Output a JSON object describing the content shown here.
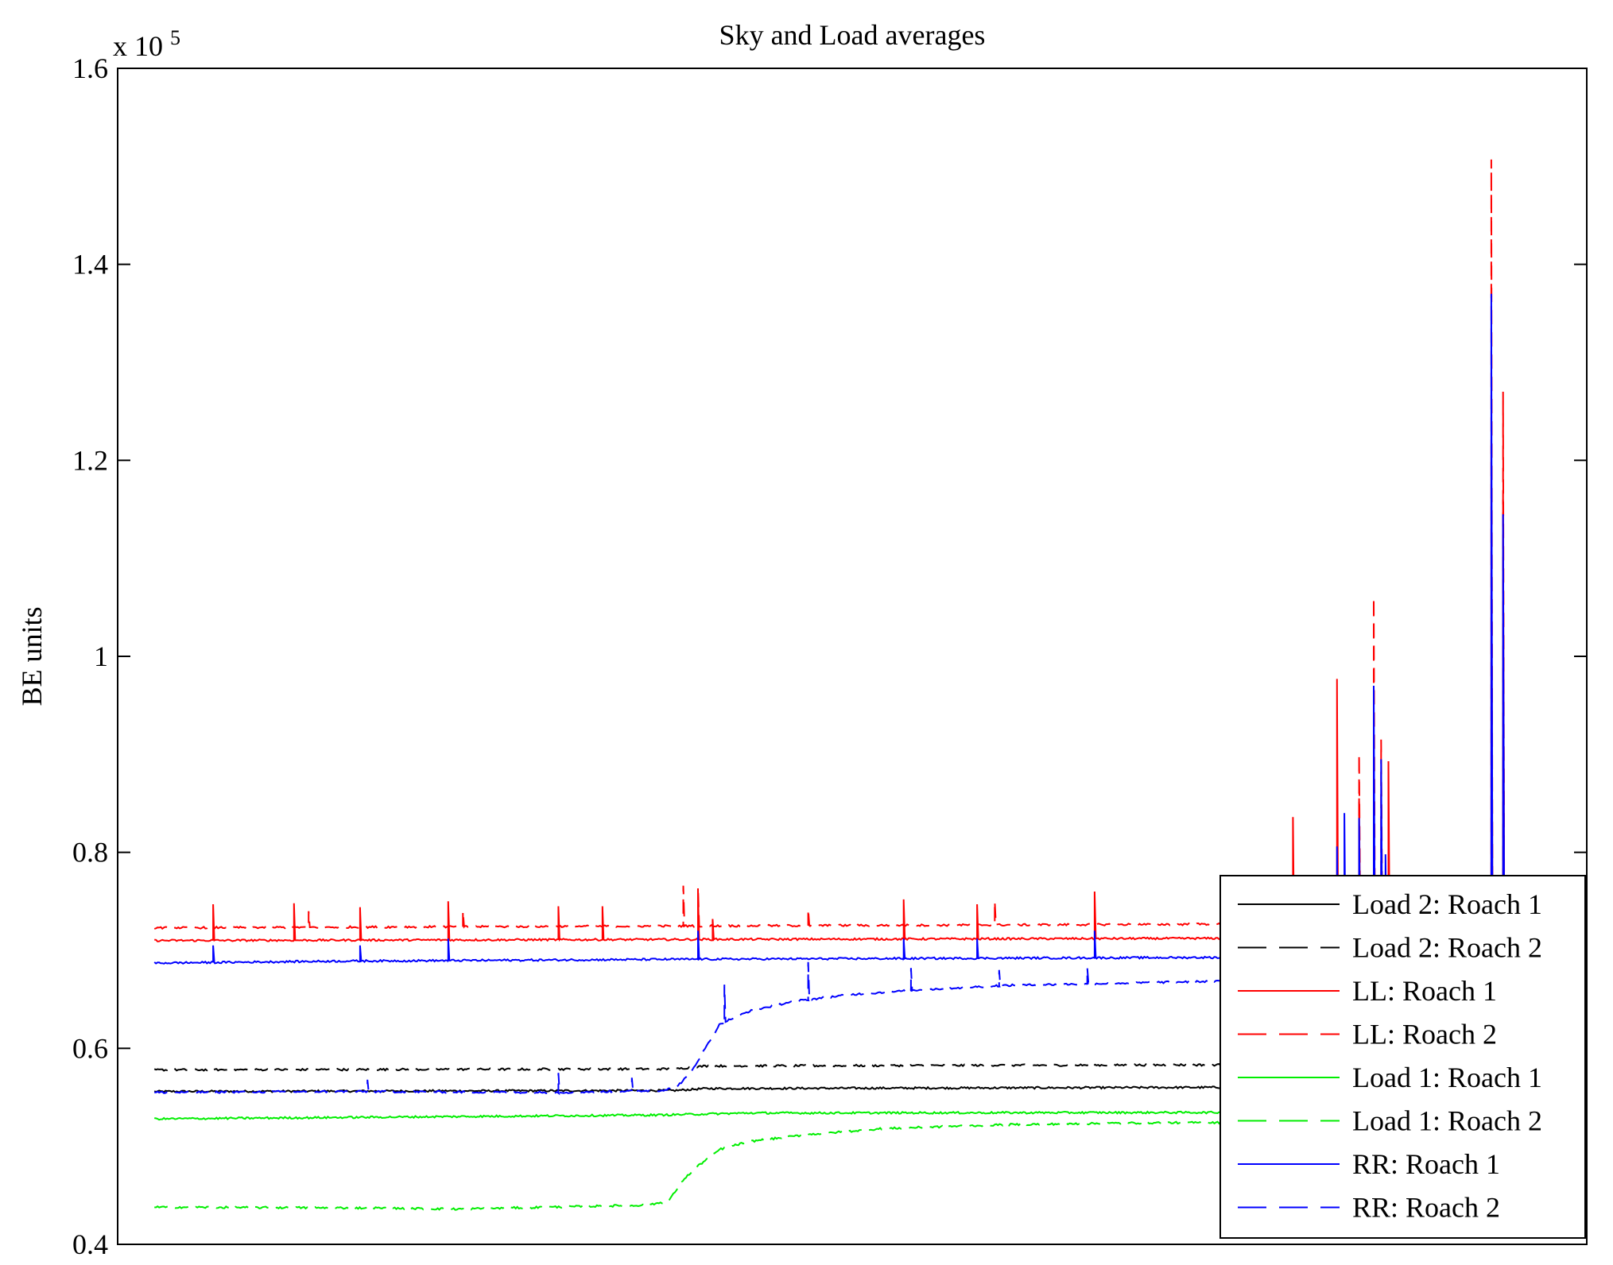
{
  "chart_data": {
    "type": "line",
    "title": "Sky and Load averages",
    "xlabel": "",
    "ylabel": "BE units",
    "y_scale_label": {
      "base": "x 10",
      "exponent": "5"
    },
    "ylim": [
      0.4,
      1.6
    ],
    "xlim": [
      0,
      1000
    ],
    "yticks": [
      0.4,
      0.6,
      0.8,
      1.0,
      1.2,
      1.4,
      1.6
    ],
    "ytick_labels": [
      "0.4",
      "0.6",
      "0.8",
      "1",
      "1.2",
      "1.4",
      "1.6"
    ],
    "x_data_range": [
      25,
      1000
    ],
    "legend_position": "bottom-right",
    "series": [
      {
        "name": "Load 2: Roach 1",
        "color": "#000000",
        "dash": "solid",
        "baseline": [
          [
            25,
            0.556
          ],
          [
            380,
            0.557
          ],
          [
            400,
            0.559
          ],
          [
            1000,
            0.561
          ]
        ],
        "spikes": []
      },
      {
        "name": "Load 2: Roach 2",
        "color": "#000000",
        "dash": "dashed",
        "baseline": [
          [
            25,
            0.578
          ],
          [
            380,
            0.579
          ],
          [
            400,
            0.582
          ],
          [
            1000,
            0.584
          ]
        ],
        "spikes": []
      },
      {
        "name": "LL: Roach 1",
        "color": "#ff0000",
        "dash": "solid",
        "baseline": [
          [
            25,
            0.71
          ],
          [
            1000,
            0.713
          ]
        ],
        "spikes": [
          [
            65,
            0.747
          ],
          [
            120,
            0.748
          ],
          [
            165,
            0.744
          ],
          [
            225,
            0.75
          ],
          [
            300,
            0.745
          ],
          [
            330,
            0.745
          ],
          [
            395,
            0.758
          ],
          [
            405,
            0.732
          ],
          [
            535,
            0.752
          ],
          [
            585,
            0.747
          ],
          [
            665,
            0.76
          ],
          [
            752,
            0.745
          ],
          [
            763,
            0.75
          ],
          [
            800,
            0.836
          ],
          [
            830,
            0.977
          ],
          [
            845,
            0.855
          ],
          [
            865,
            0.893
          ],
          [
            935,
            1.215
          ],
          [
            943,
            1.16
          ]
        ]
      },
      {
        "name": "LL: Roach 2",
        "color": "#ff0000",
        "dash": "dashed",
        "baseline": [
          [
            25,
            0.723
          ],
          [
            1000,
            0.728
          ]
        ],
        "spikes": [
          [
            130,
            0.74
          ],
          [
            235,
            0.74
          ],
          [
            385,
            0.766
          ],
          [
            395,
            0.765
          ],
          [
            470,
            0.742
          ],
          [
            597,
            0.75
          ],
          [
            845,
            0.9
          ],
          [
            855,
            1.06
          ],
          [
            860,
            0.915
          ],
          [
            935,
            1.507
          ],
          [
            943,
            1.27
          ]
        ]
      },
      {
        "name": "Load 1: Roach 1",
        "color": "#00ee00",
        "dash": "solid",
        "baseline": [
          [
            25,
            0.528
          ],
          [
            370,
            0.532
          ],
          [
            430,
            0.534
          ],
          [
            1000,
            0.535
          ]
        ],
        "spikes": []
      },
      {
        "name": "Load 1: Roach 2",
        "color": "#00ee00",
        "dash": "dashed",
        "baseline": [
          [
            25,
            0.438
          ],
          [
            180,
            0.437
          ],
          [
            230,
            0.436
          ],
          [
            360,
            0.44
          ],
          [
            375,
            0.444
          ],
          [
            385,
            0.466
          ],
          [
            395,
            0.48
          ],
          [
            410,
            0.497
          ],
          [
            430,
            0.505
          ],
          [
            470,
            0.512
          ],
          [
            520,
            0.518
          ],
          [
            600,
            0.522
          ],
          [
            700,
            0.524
          ],
          [
            1000,
            0.526
          ]
        ],
        "spikes": []
      },
      {
        "name": "RR: Roach 1",
        "color": "#0000ff",
        "dash": "solid",
        "baseline": [
          [
            25,
            0.687
          ],
          [
            150,
            0.689
          ],
          [
            400,
            0.691
          ],
          [
            600,
            0.692
          ],
          [
            1000,
            0.694
          ]
        ],
        "spikes": [
          [
            65,
            0.705
          ],
          [
            165,
            0.705
          ],
          [
            225,
            0.712
          ],
          [
            395,
            0.72
          ],
          [
            535,
            0.712
          ],
          [
            585,
            0.712
          ],
          [
            665,
            0.72
          ],
          [
            752,
            0.72
          ],
          [
            800,
            0.71
          ],
          [
            830,
            0.806
          ],
          [
            835,
            0.84
          ],
          [
            845,
            0.835
          ],
          [
            855,
            0.97
          ],
          [
            860,
            0.895
          ],
          [
            863,
            0.798
          ],
          [
            935,
            1.37
          ],
          [
            943,
            1.145
          ]
        ]
      },
      {
        "name": "RR: Roach 2",
        "color": "#0000ff",
        "dash": "dashed",
        "baseline": [
          [
            25,
            0.555
          ],
          [
            150,
            0.556
          ],
          [
            300,
            0.555
          ],
          [
            370,
            0.557
          ],
          [
            380,
            0.56
          ],
          [
            390,
            0.575
          ],
          [
            400,
            0.6
          ],
          [
            410,
            0.625
          ],
          [
            430,
            0.638
          ],
          [
            460,
            0.648
          ],
          [
            500,
            0.655
          ],
          [
            550,
            0.66
          ],
          [
            600,
            0.664
          ],
          [
            700,
            0.667
          ],
          [
            800,
            0.67
          ],
          [
            1000,
            0.673
          ]
        ],
        "spikes": [
          [
            170,
            0.568
          ],
          [
            300,
            0.575
          ],
          [
            350,
            0.57
          ],
          [
            413,
            0.665
          ],
          [
            470,
            0.688
          ],
          [
            540,
            0.682
          ],
          [
            600,
            0.68
          ],
          [
            660,
            0.682
          ],
          [
            780,
            0.678
          ],
          [
            840,
            0.685
          ]
        ]
      }
    ]
  }
}
